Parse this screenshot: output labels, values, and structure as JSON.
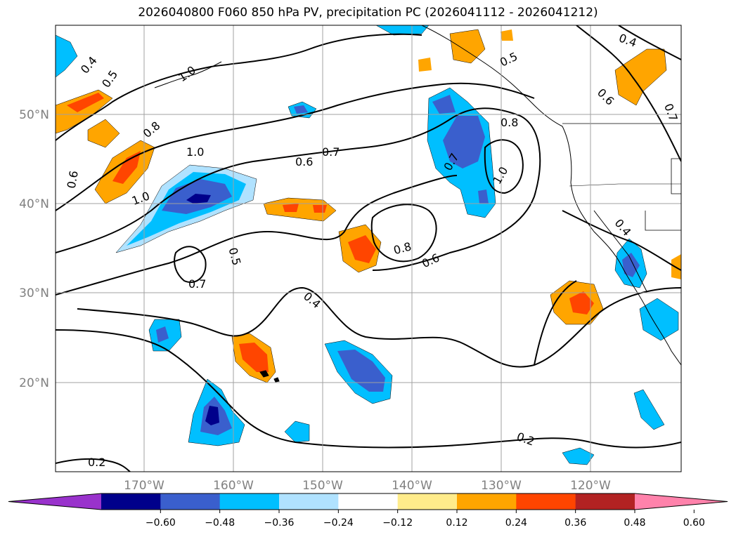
{
  "title": "2026040800 F060 850 hPa PV, precipitation PC (2026041112 - 2026041212)",
  "map": {
    "lon_range": [
      -180,
      -110
    ],
    "lat_range": [
      10,
      60
    ],
    "lon_ticks": [
      {
        "lon": -170,
        "label": "170°W"
      },
      {
        "lon": -160,
        "label": "160°W"
      },
      {
        "lon": -150,
        "label": "150°W"
      },
      {
        "lon": -140,
        "label": "140°W"
      },
      {
        "lon": -130,
        "label": "130°W"
      },
      {
        "lon": -120,
        "label": "120°W"
      }
    ],
    "lat_ticks": [
      {
        "lat": 50,
        "label": "50°N"
      },
      {
        "lat": 40,
        "label": "40°N"
      },
      {
        "lat": 30,
        "label": "30°N"
      },
      {
        "lat": 20,
        "label": "20°N"
      }
    ],
    "gridlines": true
  },
  "colorbar": {
    "colors": [
      "#9932cc",
      "#00008b",
      "#3a5fcd",
      "#00bfff",
      "#b0e2ff",
      "#ffffff",
      "#ffec8b",
      "#ffa500",
      "#ff4500",
      "#b22222",
      "#ff82ab"
    ],
    "labels": [
      "−0.60",
      "−0.48",
      "−0.36",
      "−0.24",
      "−0.12",
      "0.12",
      "0.24",
      "0.36",
      "0.48",
      "0.60"
    ]
  },
  "contour_labels": [
    "0.4",
    "0.5",
    "0.6",
    "0.7",
    "0.8",
    "1.0",
    "0.2"
  ]
}
